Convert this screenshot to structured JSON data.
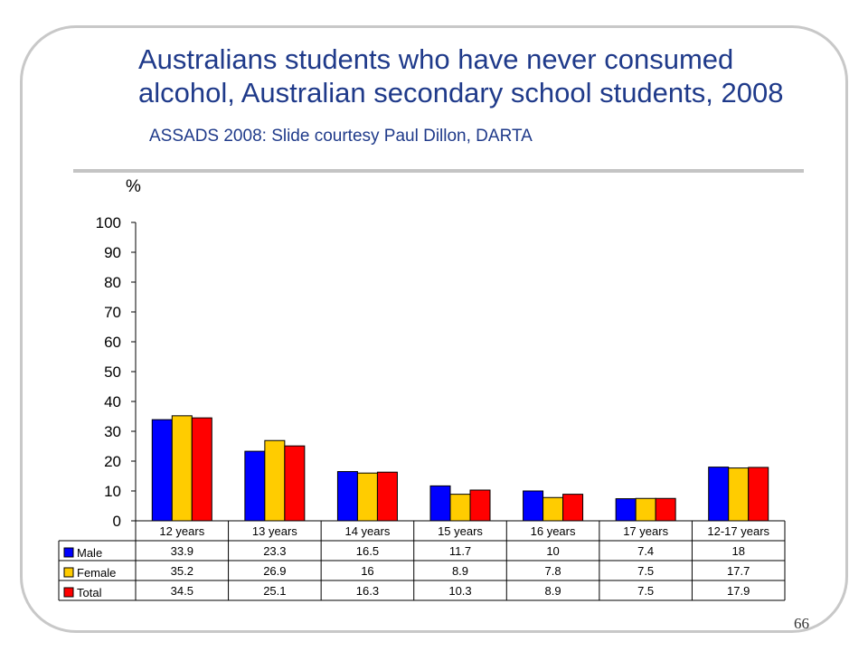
{
  "slide": {
    "title": "Australians students who have never consumed alcohol, Australian secondary school students, 2008",
    "subtitle": "ASSADS 2008: Slide courtesy Paul Dillon, DARTA",
    "page_number": "66"
  },
  "chart_data": {
    "type": "bar",
    "title": "Australians students who have never consumed alcohol, Australian secondary school students, 2008",
    "ylabel": "%",
    "ylim": [
      0,
      100
    ],
    "yticks": [
      0,
      10,
      20,
      30,
      40,
      50,
      60,
      70,
      80,
      90,
      100
    ],
    "categories": [
      "12 years",
      "13 years",
      "14 years",
      "15 years",
      "16 years",
      "17 years",
      "12-17 years"
    ],
    "series": [
      {
        "name": "Male",
        "color": "#0000ff",
        "values": [
          33.9,
          23.3,
          16.5,
          11.7,
          10,
          7.4,
          18
        ]
      },
      {
        "name": "Female",
        "color": "#ffcc00",
        "values": [
          35.2,
          26.9,
          16,
          8.9,
          7.8,
          7.5,
          17.7
        ]
      },
      {
        "name": "Total",
        "color": "#ff0000",
        "values": [
          34.5,
          25.1,
          16.3,
          10.3,
          8.9,
          7.5,
          17.9
        ]
      }
    ],
    "legend": "data-table",
    "grid": false
  }
}
